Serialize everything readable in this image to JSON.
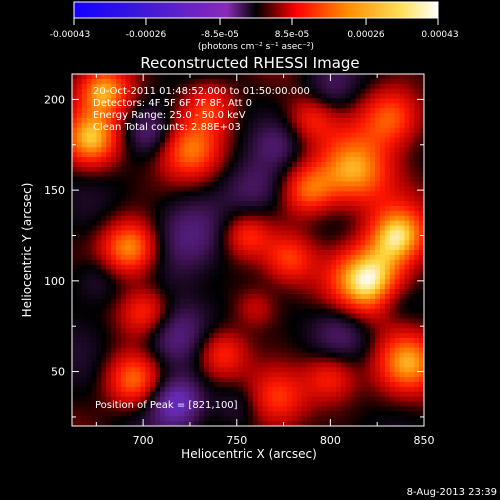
{
  "chart_data": {
    "type": "heatmap",
    "title": "Reconstructed RHESSI Image",
    "xlabel": "Heliocentric X (arcsec)",
    "ylabel": "Heliocentric Y (arcsec)",
    "xlim": [
      662,
      850
    ],
    "ylim": [
      20,
      214
    ],
    "x_ticks": [
      700,
      750,
      800,
      850
    ],
    "y_ticks": [
      50,
      100,
      150,
      200
    ],
    "x_tick_labels": [
      "700",
      "750",
      "800",
      "850"
    ],
    "y_tick_labels": [
      "50",
      "100",
      "150",
      "200"
    ],
    "colorbar": {
      "range": [
        -0.00043,
        0.00043
      ],
      "ticks": [
        -0.00043,
        -0.00026,
        -8.5e-05,
        8.5e-05,
        0.00026,
        0.00043
      ],
      "tick_labels": [
        "-0.00043",
        "-0.00026",
        "-8.5e-05",
        "8.5e-05",
        "0.00026",
        "0.00043"
      ],
      "label": "(photons cm⁻² s⁻¹ asec⁻²)"
    },
    "annotations": [
      "20-Oct-2011 01:48:52.000 to 01:50:00.000",
      "Detectors: 4F 5F 6F 7F 8F, Att 0",
      "Energy Range: 25.0 - 50.0 keV",
      "Clean    Total counts: 2.88E+03",
      "Position of Peak = [821,100]"
    ],
    "footer_date": "8-Aug-2013 23:39",
    "peak_position": [
      821,
      100
    ],
    "sources": [
      {
        "x": 821,
        "y": 100,
        "amp": 1.0,
        "r": 14
      },
      {
        "x": 836,
        "y": 125,
        "amp": 0.78,
        "r": 11
      },
      {
        "x": 812,
        "y": 160,
        "amp": 0.72,
        "r": 14
      },
      {
        "x": 833,
        "y": 190,
        "amp": 0.62,
        "r": 12
      },
      {
        "x": 842,
        "y": 55,
        "amp": 0.66,
        "r": 12
      },
      {
        "x": 788,
        "y": 150,
        "amp": 0.56,
        "r": 10
      },
      {
        "x": 778,
        "y": 112,
        "amp": 0.48,
        "r": 10
      },
      {
        "x": 772,
        "y": 35,
        "amp": 0.52,
        "r": 12
      },
      {
        "x": 800,
        "y": 47,
        "amp": 0.46,
        "r": 10
      },
      {
        "x": 755,
        "y": 125,
        "amp": 0.42,
        "r": 9
      },
      {
        "x": 725,
        "y": 172,
        "amp": 0.58,
        "r": 12
      },
      {
        "x": 693,
        "y": 118,
        "amp": 0.74,
        "r": 11
      },
      {
        "x": 702,
        "y": 82,
        "amp": 0.55,
        "r": 10
      },
      {
        "x": 695,
        "y": 45,
        "amp": 0.62,
        "r": 11
      },
      {
        "x": 672,
        "y": 178,
        "amp": 0.75,
        "r": 11
      },
      {
        "x": 679,
        "y": 205,
        "amp": 0.7,
        "r": 10
      },
      {
        "x": 742,
        "y": 60,
        "amp": 0.52,
        "r": 10
      },
      {
        "x": 735,
        "y": 197,
        "amp": 0.45,
        "r": 10
      },
      {
        "x": 760,
        "y": 85,
        "amp": 0.28,
        "r": 8
      },
      {
        "x": 790,
        "y": 190,
        "amp": 0.35,
        "r": 9
      },
      {
        "x": 725,
        "y": 125,
        "amp": -0.35,
        "r": 14
      },
      {
        "x": 715,
        "y": 70,
        "amp": -0.5,
        "r": 13
      },
      {
        "x": 718,
        "y": 33,
        "amp": -0.65,
        "r": 10
      },
      {
        "x": 760,
        "y": 150,
        "amp": -0.3,
        "r": 12
      },
      {
        "x": 806,
        "y": 72,
        "amp": -0.35,
        "r": 12
      },
      {
        "x": 800,
        "y": 205,
        "amp": -0.25,
        "r": 10
      },
      {
        "x": 675,
        "y": 100,
        "amp": -0.25,
        "r": 10
      },
      {
        "x": 703,
        "y": 182,
        "amp": -0.35,
        "r": 9
      },
      {
        "x": 835,
        "y": 88,
        "amp": -0.2,
        "r": 8
      },
      {
        "x": 750,
        "y": 30,
        "amp": -0.25,
        "r": 9
      },
      {
        "x": 771,
        "y": 175,
        "amp": -0.2,
        "r": 8
      }
    ]
  }
}
